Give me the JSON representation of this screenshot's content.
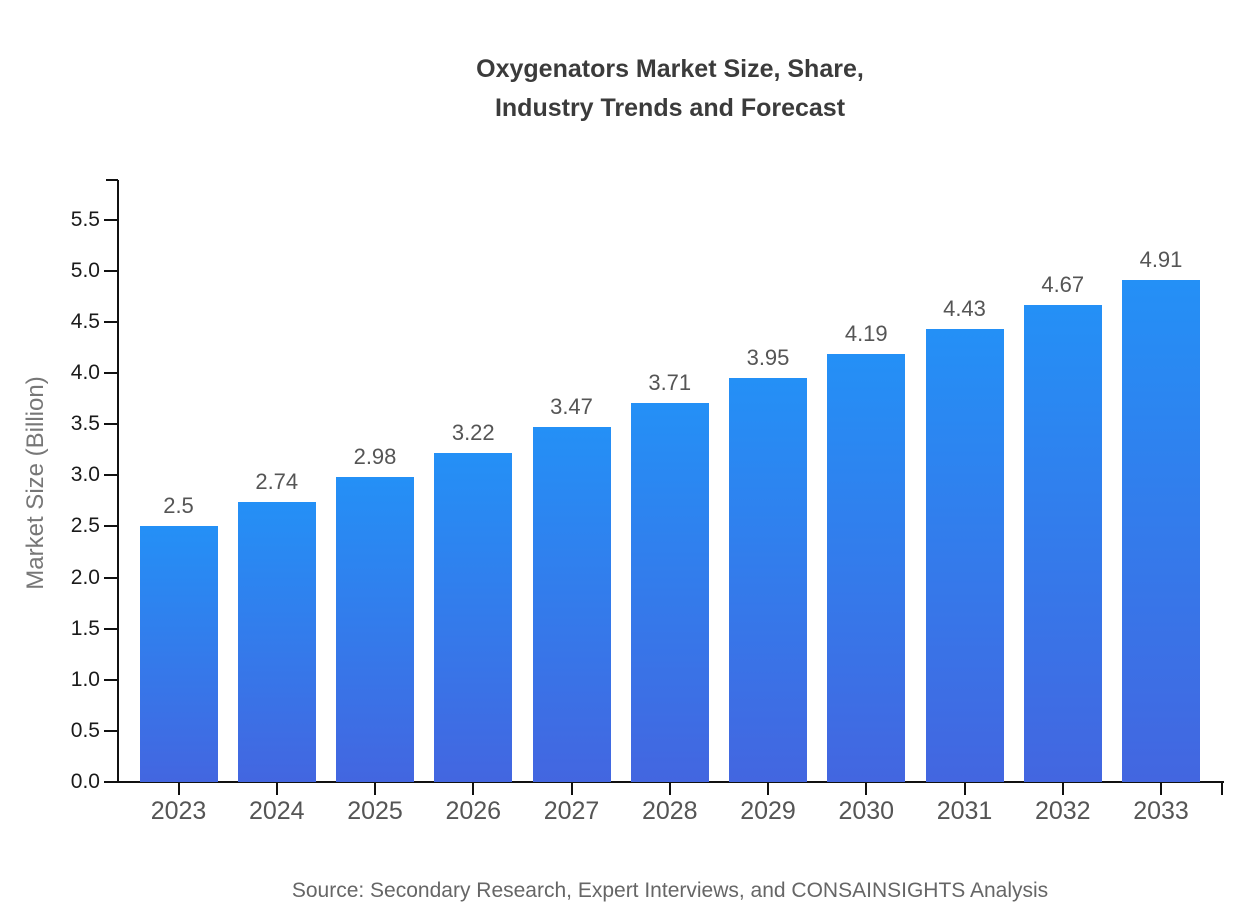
{
  "chart_data": {
    "type": "bar",
    "title_lines": [
      "Oxygenators Market Size, Share,",
      "Industry Trends and Forecast"
    ],
    "title": "Oxygenators Market Size, Share, Industry Trends and Forecast",
    "categories": [
      "2023",
      "2024",
      "2025",
      "2026",
      "2027",
      "2028",
      "2029",
      "2030",
      "2031",
      "2032",
      "2033"
    ],
    "values": [
      2.5,
      2.74,
      2.98,
      3.22,
      3.47,
      3.71,
      3.95,
      4.19,
      4.43,
      4.67,
      4.91
    ],
    "value_labels": [
      "2.5",
      "2.74",
      "2.98",
      "3.22",
      "3.47",
      "3.71",
      "3.95",
      "4.19",
      "4.43",
      "4.67",
      "4.91"
    ],
    "xlabel": "",
    "ylabel": "Market Size (Billion)",
    "ylim": [
      0,
      5.89
    ],
    "yticks": [
      0.0,
      0.5,
      1.0,
      1.5,
      2.0,
      2.5,
      3.0,
      3.5,
      4.0,
      4.5,
      5.0,
      5.5
    ],
    "ytick_labels": [
      "0.0",
      "0.5",
      "1.0",
      "1.5",
      "2.0",
      "2.5",
      "3.0",
      "3.5",
      "4.0",
      "4.5",
      "5.0",
      "5.5"
    ],
    "grid": false,
    "legend": false,
    "bar_gradient_top": "#2490f6",
    "bar_gradient_bottom": "#4366e0"
  },
  "colors": {
    "axis": "#111111",
    "title_text": "#3b3b3b",
    "y_axis_title": "#777777",
    "y_tick_label": "#1a1a1a",
    "x_tick_label": "#555555",
    "value_label": "#555555",
    "source_text": "#666666",
    "background": "#ffffff"
  },
  "source_note": "Source: Secondary Research, Expert Interviews, and CONSAINSIGHTS Analysis"
}
